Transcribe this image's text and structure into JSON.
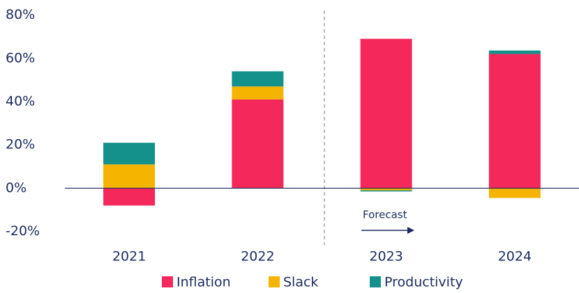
{
  "chart_data": {
    "type": "stacked_bar",
    "categories": [
      "2021",
      "2022",
      "2023",
      "2024"
    ],
    "series": [
      {
        "name": "Inflation",
        "color": "#f4285b",
        "values": [
          -8,
          41,
          69,
          62
        ]
      },
      {
        "name": "Slack",
        "color": "#f5b400",
        "values": [
          11,
          6,
          -1,
          -4.5
        ]
      },
      {
        "name": "Productivity",
        "color": "#14918a",
        "values": [
          10,
          7,
          -0.5,
          1.6
        ]
      }
    ],
    "ylim": [
      -23,
      85
    ],
    "yticks": [
      {
        "value": -20,
        "label": "-20%"
      },
      {
        "value": 0,
        "label": "0%"
      },
      {
        "value": 20,
        "label": "20%"
      },
      {
        "value": 40,
        "label": "40%"
      },
      {
        "value": 60,
        "label": "60%"
      },
      {
        "value": 80,
        "label": "80%"
      }
    ],
    "annotation": "Forecast",
    "legend": "bottom"
  }
}
